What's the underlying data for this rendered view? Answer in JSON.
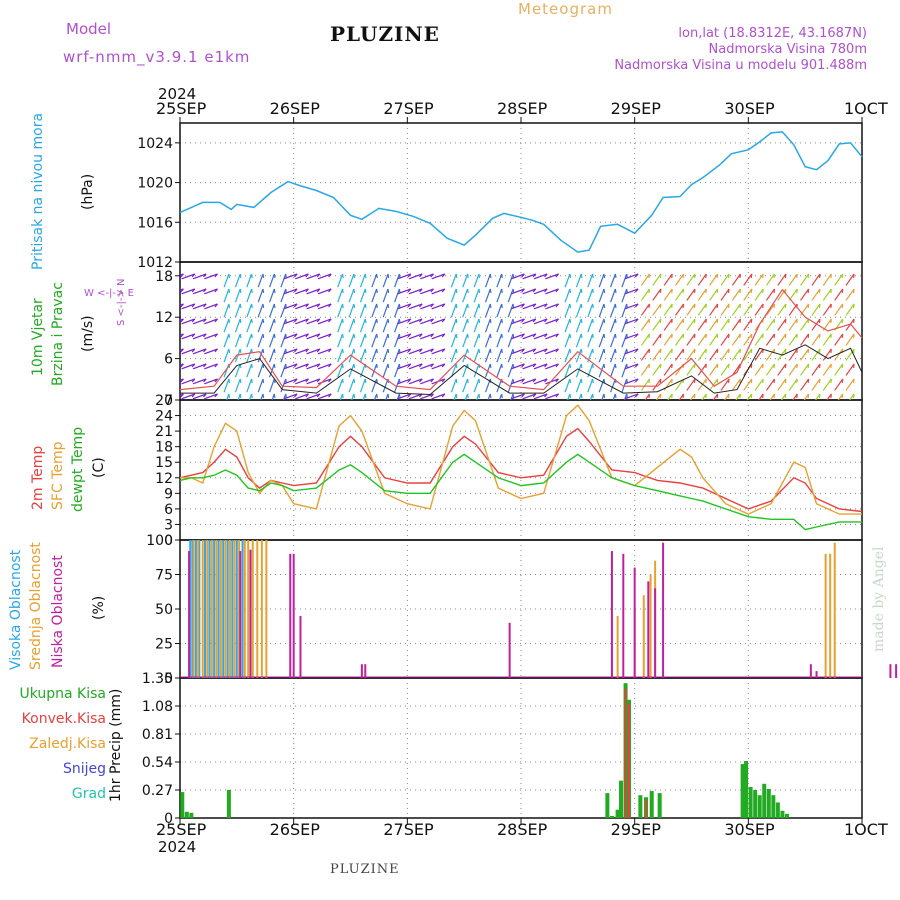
{
  "header": {
    "model_label": "Model",
    "model_name": "wrf-nmm_v3.9.1  e1km",
    "station": "PLUZINE",
    "meteogram": "Meteogram",
    "lonlat": "lon,lat (18.8312E, 43.1687N)",
    "altitude": "Nadmorska Visina 780m",
    "model_altitude": "Nadmorska Visina u modelu 901.488m",
    "footer_station": "PLUZINE",
    "credit": "made by Angel"
  },
  "time_axis": {
    "year_top": "2024",
    "year_bottom": "2024",
    "ticks": [
      "25SEP",
      "26SEP",
      "27SEP",
      "28SEP",
      "29SEP",
      "30SEP",
      "1OCT"
    ]
  },
  "panels": {
    "pressure": {
      "title": "Pritisak na nivou mora",
      "unit": "(hPa)"
    },
    "wind": {
      "title1": "10m Vjetar",
      "title2": "Brzina i Pravac",
      "unit": "(m/s)",
      "compass": "W <-|-> E",
      "compass_ns": "S <-|-> N"
    },
    "temp": {
      "t1": "2m Temp",
      "t2": "SFC Temp",
      "t3": "dewpt Temp",
      "unit": "(C)"
    },
    "cloud": {
      "t1": "Visoka Oblacnost",
      "t2": "Srednja Oblacnost",
      "t3": "Niska Oblacnost",
      "unit": "(%)"
    },
    "precip": {
      "unit": "1hr Precip (mm)",
      "legend": [
        "Ukupna Kisa",
        "Konvek.Kisa",
        "Zaledj.Kisa",
        "Snijeg",
        "Grad"
      ]
    }
  },
  "colors": {
    "pressure": "#2aa7e6",
    "t2m": "#e84040",
    "tsfc": "#e8a030",
    "tdew": "#22c422",
    "high_cloud": "#33a8e8",
    "mid_cloud": "#e8a030",
    "low_cloud": "#c020a0",
    "total_rain": "#22aa22",
    "conv_rain": "#e84040",
    "frz_rain": "#e8a030",
    "snow": "#4444dd",
    "hail": "#22c4aa",
    "wind_speed": "#222222",
    "wind_gust": "#e85050"
  },
  "chart_data": [
    {
      "type": "line",
      "title": "Pritisak na nivou mora",
      "ylabel": "(hPa)",
      "ylim": [
        1012,
        1026
      ],
      "yticks": [
        1012,
        1016,
        1020,
        1024
      ],
      "x_days": [
        0,
        0.1,
        0.2,
        0.35,
        0.45,
        0.5,
        0.65,
        0.8,
        0.95,
        1.05,
        1.2,
        1.35,
        1.5,
        1.6,
        1.75,
        1.9,
        2.05,
        2.2,
        2.35,
        2.5,
        2.6,
        2.75,
        2.85,
        3.0,
        3.1,
        3.2,
        3.35,
        3.5,
        3.6,
        3.7,
        3.85,
        4.0,
        4.15,
        4.25,
        4.4,
        4.5,
        4.6,
        4.75,
        4.85,
        5.0,
        5.1,
        5.2,
        5.3,
        5.4,
        5.5,
        5.6,
        5.7,
        5.8,
        5.9,
        6.0
      ],
      "values": [
        1017,
        1017.5,
        1018,
        1018,
        1017.3,
        1017.8,
        1017.5,
        1019,
        1020.1,
        1019.7,
        1019.2,
        1018.5,
        1016.7,
        1016.3,
        1017.4,
        1017.1,
        1016.6,
        1015.9,
        1014.4,
        1013.7,
        1014.7,
        1016.4,
        1016.9,
        1016.5,
        1016.2,
        1015.8,
        1014.2,
        1013.0,
        1013.2,
        1015.6,
        1015.8,
        1014.9,
        1016.7,
        1018.5,
        1018.6,
        1019.8,
        1020.5,
        1021.8,
        1022.9,
        1023.3,
        1024.1,
        1025.0,
        1025.1,
        1023.8,
        1021.6,
        1021.3,
        1022.2,
        1023.9,
        1024.0,
        1022.6
      ]
    },
    {
      "type": "line",
      "title": "10m Vjetar Brzina i Pravac",
      "ylabel": "(m/s)",
      "ylim": [
        0,
        20
      ],
      "yticks": [
        0,
        6,
        12,
        18
      ],
      "series": [
        {
          "name": "speed",
          "x_days": [
            0,
            0.3,
            0.5,
            0.7,
            0.9,
            1.2,
            1.5,
            1.9,
            2.2,
            2.5,
            2.9,
            3.2,
            3.5,
            3.9,
            4.2,
            4.5,
            4.7,
            4.9,
            5.1,
            5.3,
            5.5,
            5.7,
            5.9,
            6.0
          ],
          "values": [
            1,
            1,
            5,
            6,
            1.5,
            1,
            4.5,
            1,
            0.8,
            5,
            1,
            1,
            4.5,
            1,
            1.2,
            3.5,
            1,
            1.5,
            7.5,
            6.5,
            8,
            6,
            7.5,
            4
          ]
        },
        {
          "name": "gust",
          "x_days": [
            0,
            0.3,
            0.5,
            0.7,
            0.9,
            1.2,
            1.5,
            1.9,
            2.2,
            2.5,
            2.9,
            3.2,
            3.5,
            3.9,
            4.2,
            4.5,
            4.7,
            4.9,
            5.1,
            5.3,
            5.5,
            5.7,
            5.9,
            6.0
          ],
          "values": [
            1.5,
            2,
            6.5,
            7,
            2,
            1.8,
            6.5,
            2,
            1.5,
            6.5,
            2,
            1.5,
            7,
            2,
            2,
            6,
            2,
            4,
            11,
            16,
            12,
            10,
            11,
            9
          ]
        }
      ]
    },
    {
      "type": "line",
      "title": "2m Temp / SFC Temp / dewpt Temp",
      "ylabel": "(C)",
      "ylim": [
        0,
        27
      ],
      "yticks": [
        0,
        3,
        6,
        9,
        12,
        15,
        18,
        21,
        24,
        27
      ],
      "x_days": [
        0,
        0.1,
        0.2,
        0.3,
        0.4,
        0.5,
        0.6,
        0.7,
        0.8,
        0.9,
        1.0,
        1.2,
        1.4,
        1.5,
        1.6,
        1.8,
        2.0,
        2.2,
        2.4,
        2.5,
        2.6,
        2.8,
        3.0,
        3.2,
        3.4,
        3.5,
        3.6,
        3.8,
        4.0,
        4.2,
        4.4,
        4.5,
        4.6,
        4.8,
        5.0,
        5.2,
        5.4,
        5.5,
        5.6,
        5.8,
        6.0
      ],
      "series": [
        {
          "name": "2m Temp",
          "values": [
            12,
            12.5,
            13,
            15,
            17.5,
            16,
            12,
            10,
            11.5,
            11,
            10.5,
            11,
            18,
            20,
            18,
            12,
            11,
            11,
            18,
            20,
            18.5,
            13,
            12,
            12.5,
            20,
            21.5,
            19,
            13.5,
            13,
            11.5,
            11,
            10.5,
            10,
            8,
            6,
            7.5,
            12,
            11,
            8,
            6,
            5.5
          ]
        },
        {
          "name": "SFC Temp",
          "values": [
            12,
            12,
            11,
            18,
            22.5,
            21,
            13,
            9,
            11.5,
            10.5,
            7,
            6,
            22,
            24,
            21,
            9,
            7,
            6,
            22,
            25,
            23,
            10,
            8,
            9,
            24,
            26,
            23,
            12,
            10.5,
            14,
            17.5,
            16,
            12,
            7,
            5,
            7,
            15,
            14,
            7,
            5,
            5
          ]
        },
        {
          "name": "dewpt Temp",
          "values": [
            11.5,
            12,
            12,
            12.5,
            13.5,
            12.5,
            10,
            9.5,
            11,
            10.5,
            9.5,
            10,
            13.5,
            14.5,
            13,
            9.5,
            9,
            9,
            15,
            16.5,
            15,
            12,
            10.5,
            11,
            15,
            16.5,
            15,
            12,
            10.5,
            9.5,
            8.5,
            8,
            7.5,
            6,
            4.5,
            4,
            4,
            2,
            2.5,
            3.5,
            3.5
          ]
        }
      ]
    },
    {
      "type": "bar",
      "title": "Visoka / Srednja / Niska Oblacnost",
      "ylabel": "(%)",
      "ylim": [
        0,
        100
      ],
      "yticks": [
        0,
        25,
        50,
        75,
        100
      ],
      "series": [
        {
          "name": "Visoka Oblacnost",
          "x_days": [
            0.09,
            0.11,
            0.14,
            0.17,
            0.22,
            0.26,
            0.3,
            0.34,
            0.38,
            0.42,
            0.46,
            0.5,
            0.55
          ],
          "values": [
            100,
            100,
            100,
            100,
            100,
            100,
            100,
            100,
            100,
            100,
            100,
            100,
            100
          ]
        },
        {
          "name": "Srednja Oblacnost",
          "x_days": [
            0.12,
            0.16,
            0.2,
            0.24,
            0.28,
            0.32,
            0.36,
            0.4,
            0.44,
            0.48,
            0.52,
            0.57,
            0.6,
            0.64,
            0.68,
            0.72,
            0.76,
            3.85,
            4.0,
            4.08,
            4.14,
            4.18,
            5.68,
            5.72,
            5.76
          ],
          "values": [
            100,
            100,
            100,
            100,
            100,
            100,
            100,
            100,
            100,
            100,
            100,
            100,
            100,
            100,
            100,
            100,
            100,
            45,
            50,
            60,
            75,
            85,
            90,
            90,
            98
          ]
        },
        {
          "name": "Niska Oblacnost",
          "x_days": [
            0.08,
            0.53,
            0.62,
            0.97,
            1.0,
            1.06,
            1.6,
            1.63,
            2.9,
            3.8,
            3.9,
            4.0,
            4.12,
            4.18,
            4.25,
            5.55,
            5.6,
            6.25,
            6.3,
            6.5,
            6.7
          ],
          "values": [
            92,
            92,
            93,
            90,
            90,
            45,
            10,
            10,
            40,
            92,
            90,
            80,
            70,
            65,
            98,
            10,
            5,
            10,
            10,
            10,
            10
          ]
        }
      ]
    },
    {
      "type": "bar",
      "title": "1hr Precip",
      "ylabel": "1hr Precip (mm)",
      "ylim": [
        0,
        1.35
      ],
      "yticks": [
        0,
        0.27,
        0.54,
        0.81,
        1.08,
        1.35
      ],
      "series": [
        {
          "name": "Ukupna Kisa",
          "x_days": [
            0.02,
            0.06,
            0.1,
            0.43,
            3.76,
            3.8,
            3.85,
            3.88,
            3.92,
            3.95,
            4.05,
            4.1,
            4.15,
            4.22,
            4.95,
            4.98,
            5.02,
            5.06,
            5.1,
            5.14,
            5.18,
            5.22,
            5.26,
            5.3,
            5.34
          ],
          "values": [
            0.25,
            0.06,
            0.05,
            0.27,
            0.24,
            0.02,
            0.08,
            0.36,
            1.3,
            1.14,
            0.22,
            0.2,
            0.26,
            0.24,
            0.52,
            0.55,
            0.3,
            0.27,
            0.22,
            0.33,
            0.28,
            0.22,
            0.15,
            0.07,
            0.04
          ]
        },
        {
          "name": "Konvek.Kisa",
          "x_days": [
            3.92,
            3.95,
            4.1
          ],
          "values": [
            1.25,
            1.1,
            0.18
          ]
        },
        {
          "name": "Zaledj.Kisa",
          "x_days": [],
          "values": []
        },
        {
          "name": "Snijeg",
          "x_days": [],
          "values": []
        },
        {
          "name": "Grad",
          "x_days": [],
          "values": []
        }
      ]
    }
  ]
}
